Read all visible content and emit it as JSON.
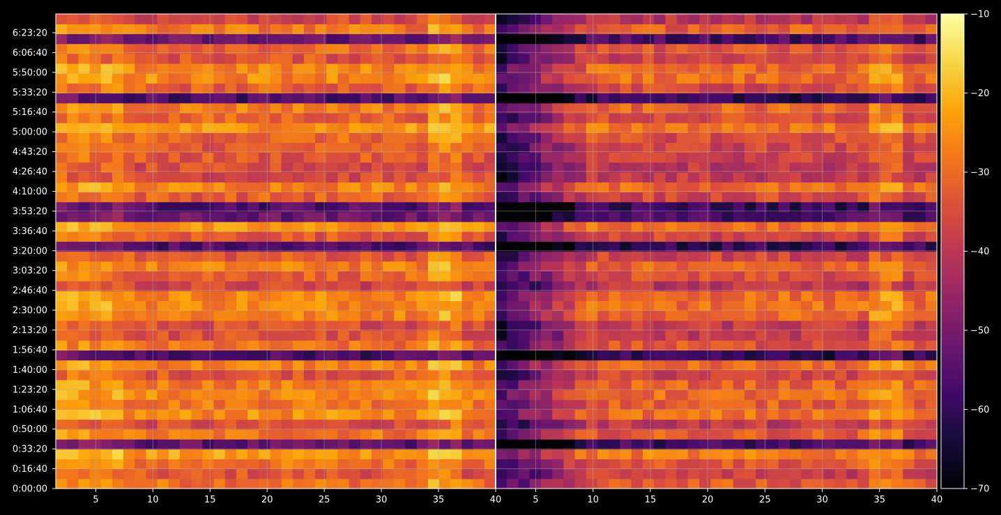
{
  "chart_data": {
    "type": "heatmap",
    "title": "",
    "xlabel": "",
    "ylabel": "",
    "grid": true,
    "panels": [
      {
        "name": "",
        "xlim": [
          1.5,
          40
        ],
        "x_ticks": [
          5,
          10,
          15,
          20,
          25,
          30,
          35,
          40
        ]
      },
      {
        "name": "",
        "xlim": [
          1.5,
          40
        ],
        "x_ticks": [
          5,
          10,
          15,
          20,
          25,
          30,
          35,
          40
        ]
      }
    ],
    "x_tick_labels": [
      "5",
      "10",
      "15",
      "20",
      "25",
      "30",
      "35",
      "40"
    ],
    "y_ticks_seconds": [
      0,
      1000,
      2000,
      3000,
      4000,
      5000,
      6000,
      7000,
      8000,
      9000,
      10000,
      11000,
      12000,
      13000,
      14000,
      15000,
      16000,
      17000,
      18000,
      19000,
      20000,
      21000,
      22000,
      23000
    ],
    "y_tick_labels": [
      "0:00:00",
      "0:16:40",
      "0:33:20",
      "0:50:00",
      "1:06:40",
      "1:23:20",
      "1:40:00",
      "1:56:40",
      "2:13:20",
      "2:30:00",
      "2:46:40",
      "3:03:20",
      "3:20:00",
      "3:36:40",
      "3:53:20",
      "4:10:00",
      "4:26:40",
      "4:43:20",
      "5:00:00",
      "5:16:40",
      "5:33:20",
      "5:50:00",
      "6:06:40",
      "6:23:20"
    ],
    "ylim_seconds": [
      0,
      23950
    ],
    "colorbar": {
      "colormap": "inferno",
      "vmin": -70,
      "vmax": -10,
      "ticks": [
        -70,
        -60,
        -50,
        -40,
        -30,
        -20,
        -10
      ],
      "tick_labels": [
        "−70",
        "−60",
        "−50",
        "−40",
        "−30",
        "−20",
        "−10"
      ]
    },
    "value_range": [
      -70,
      -10
    ],
    "rows": 48,
    "columns_per_panel": 39
  },
  "colors": {
    "background": "#000000",
    "text": "#ffffff",
    "grid": "#b0b0b0",
    "divider": "#ffffff"
  }
}
